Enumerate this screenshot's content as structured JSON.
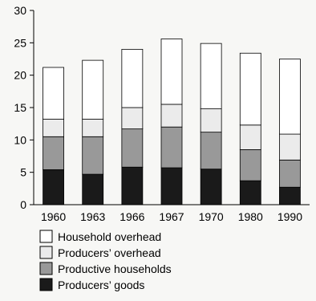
{
  "chart_data": {
    "type": "bar",
    "stacked": true,
    "categories": [
      "1960",
      "1963",
      "1966",
      "1967",
      "1970",
      "1980",
      "1990"
    ],
    "series": [
      {
        "name": "Producers’ goods",
        "color": "#1a1a1a",
        "values": [
          5.4,
          4.7,
          5.8,
          5.7,
          5.5,
          3.7,
          2.7
        ]
      },
      {
        "name": "Productive households",
        "color": "#999999",
        "values": [
          5.1,
          5.8,
          5.9,
          6.3,
          5.7,
          4.8,
          4.2
        ]
      },
      {
        "name": "Producers’ overhead",
        "color": "#ebebeb",
        "values": [
          2.7,
          2.7,
          3.3,
          3.5,
          3.6,
          3.8,
          4.0
        ]
      },
      {
        "name": "Household overhead",
        "color": "#ffffff",
        "values": [
          8.0,
          9.1,
          9.0,
          10.1,
          10.1,
          11.1,
          11.6
        ]
      }
    ],
    "legend_order": [
      "Household overhead",
      "Producers’ overhead",
      "Productive households",
      "Producers’ goods"
    ],
    "legend_position": "bottom-left",
    "ylim": [
      0,
      30
    ],
    "yticks": [
      0,
      5,
      10,
      15,
      20,
      25,
      30
    ],
    "ytick_labels": [
      "0",
      "5",
      "10",
      "15",
      "20",
      "25",
      "30"
    ],
    "grid": false,
    "title": "",
    "xlabel": "",
    "ylabel": ""
  }
}
